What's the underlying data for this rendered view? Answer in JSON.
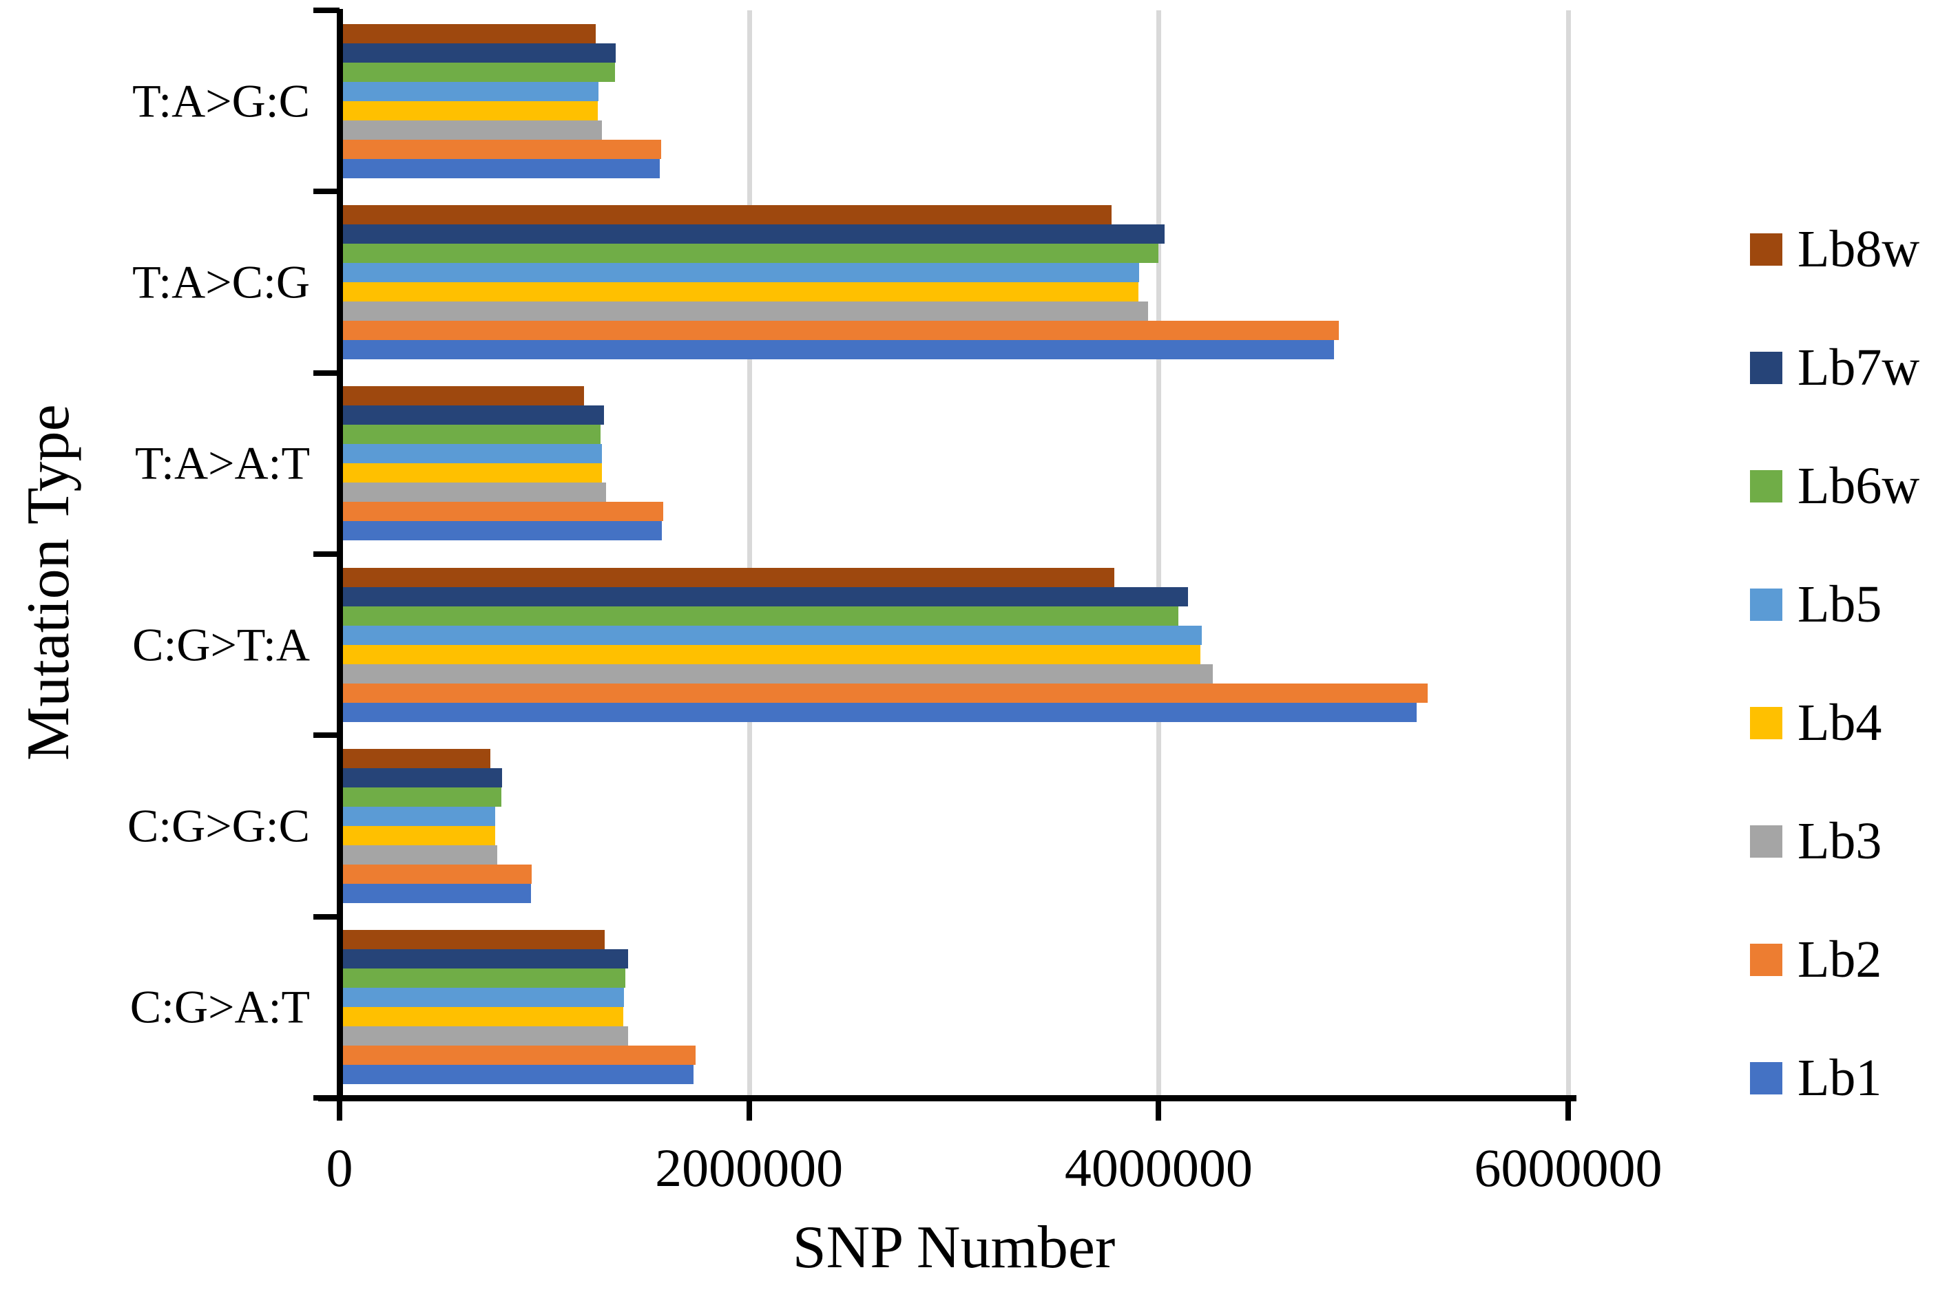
{
  "chart_data": {
    "type": "bar",
    "orientation": "horizontal",
    "title": "",
    "xlabel": "SNP Number",
    "ylabel": "Mutation Type",
    "xlim": [
      0,
      6000000
    ],
    "xticks": [
      0,
      2000000,
      4000000,
      6000000
    ],
    "xtick_labels": [
      "0",
      "2000000",
      "4000000",
      "6000000"
    ],
    "grid": "vertical-gridlines-at-xticks",
    "legend_position": "right",
    "categories_top_to_bottom": [
      "T:A>G:C",
      "T:A>C:G",
      "T:A>A:T",
      "C:G>T:A",
      "C:G>G:C",
      "C:G>A:T"
    ],
    "series": [
      {
        "name": "Lb8w",
        "color": "#9E480E",
        "values": [
          1250000,
          3770000,
          1195000,
          3785000,
          735000,
          1295000
        ]
      },
      {
        "name": "Lb7w",
        "color": "#264478",
        "values": [
          1350000,
          4030000,
          1290000,
          4145000,
          795000,
          1410000
        ]
      },
      {
        "name": "Lb6w",
        "color": "#70AD47",
        "values": [
          1345000,
          4000000,
          1275000,
          4095000,
          790000,
          1395000
        ]
      },
      {
        "name": "Lb5",
        "color": "#5B9BD5",
        "values": [
          1265000,
          3905000,
          1280000,
          4210000,
          760000,
          1390000
        ]
      },
      {
        "name": "Lb4",
        "color": "#FFC000",
        "values": [
          1260000,
          3900000,
          1280000,
          4205000,
          760000,
          1385000
        ]
      },
      {
        "name": "Lb3",
        "color": "#A5A5A5",
        "values": [
          1280000,
          3950000,
          1300000,
          4265000,
          770000,
          1410000
        ]
      },
      {
        "name": "Lb2",
        "color": "#ED7D31",
        "values": [
          1570000,
          4880000,
          1580000,
          5315000,
          940000,
          1740000
        ]
      },
      {
        "name": "Lb1",
        "color": "#4472C4",
        "values": [
          1565000,
          4855000,
          1575000,
          5260000,
          935000,
          1730000
        ]
      }
    ],
    "colors": {
      "gridline": "#d9d9d9",
      "axis": "#000000",
      "background": "#ffffff"
    }
  }
}
